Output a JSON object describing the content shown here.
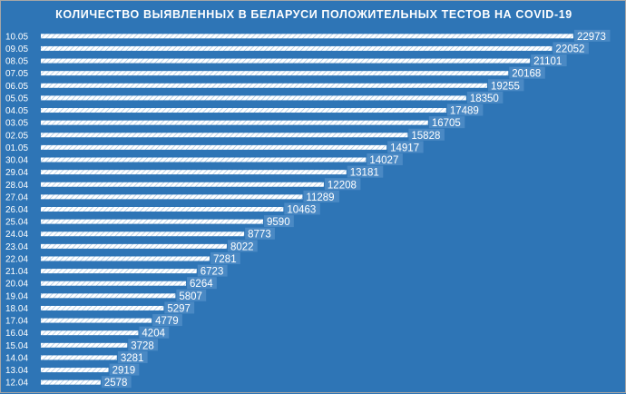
{
  "chart_data": {
    "type": "bar",
    "orientation": "horizontal",
    "title": "КОЛИЧЕСТВО ВЫЯВЛЕННЫХ В БЕЛАРУСИ ПОЛОЖИТЕЛЬНЫХ ТЕСТОВ НА COVID-19",
    "xlabel": "",
    "ylabel": "",
    "categories": [
      "10.05",
      "09.05",
      "08.05",
      "07.05",
      "06.05",
      "05.05",
      "04.05",
      "03.05",
      "02.05",
      "01.05",
      "30.04",
      "29.04",
      "28.04",
      "27.04",
      "26.04",
      "25.04",
      "24.04",
      "23.04",
      "22.04",
      "21.04",
      "20.04",
      "19.04",
      "18.04",
      "17.04",
      "16.04",
      "15.04",
      "14.04",
      "13.04",
      "12.04"
    ],
    "values": [
      22973,
      22052,
      21101,
      20168,
      19255,
      18350,
      17489,
      16705,
      15828,
      14917,
      14027,
      13181,
      12208,
      11289,
      10463,
      9590,
      8773,
      8022,
      7281,
      6723,
      6264,
      5807,
      5297,
      4779,
      4204,
      3728,
      3281,
      2919,
      2578
    ],
    "xlim": [
      0,
      24000
    ],
    "grid": false,
    "legend": "none",
    "bar_fill": "white hatched",
    "colors": {
      "background": "#2e75b6",
      "bar": "#ffffff",
      "label_box": "#4a89c4",
      "text": "#ffffff"
    }
  }
}
